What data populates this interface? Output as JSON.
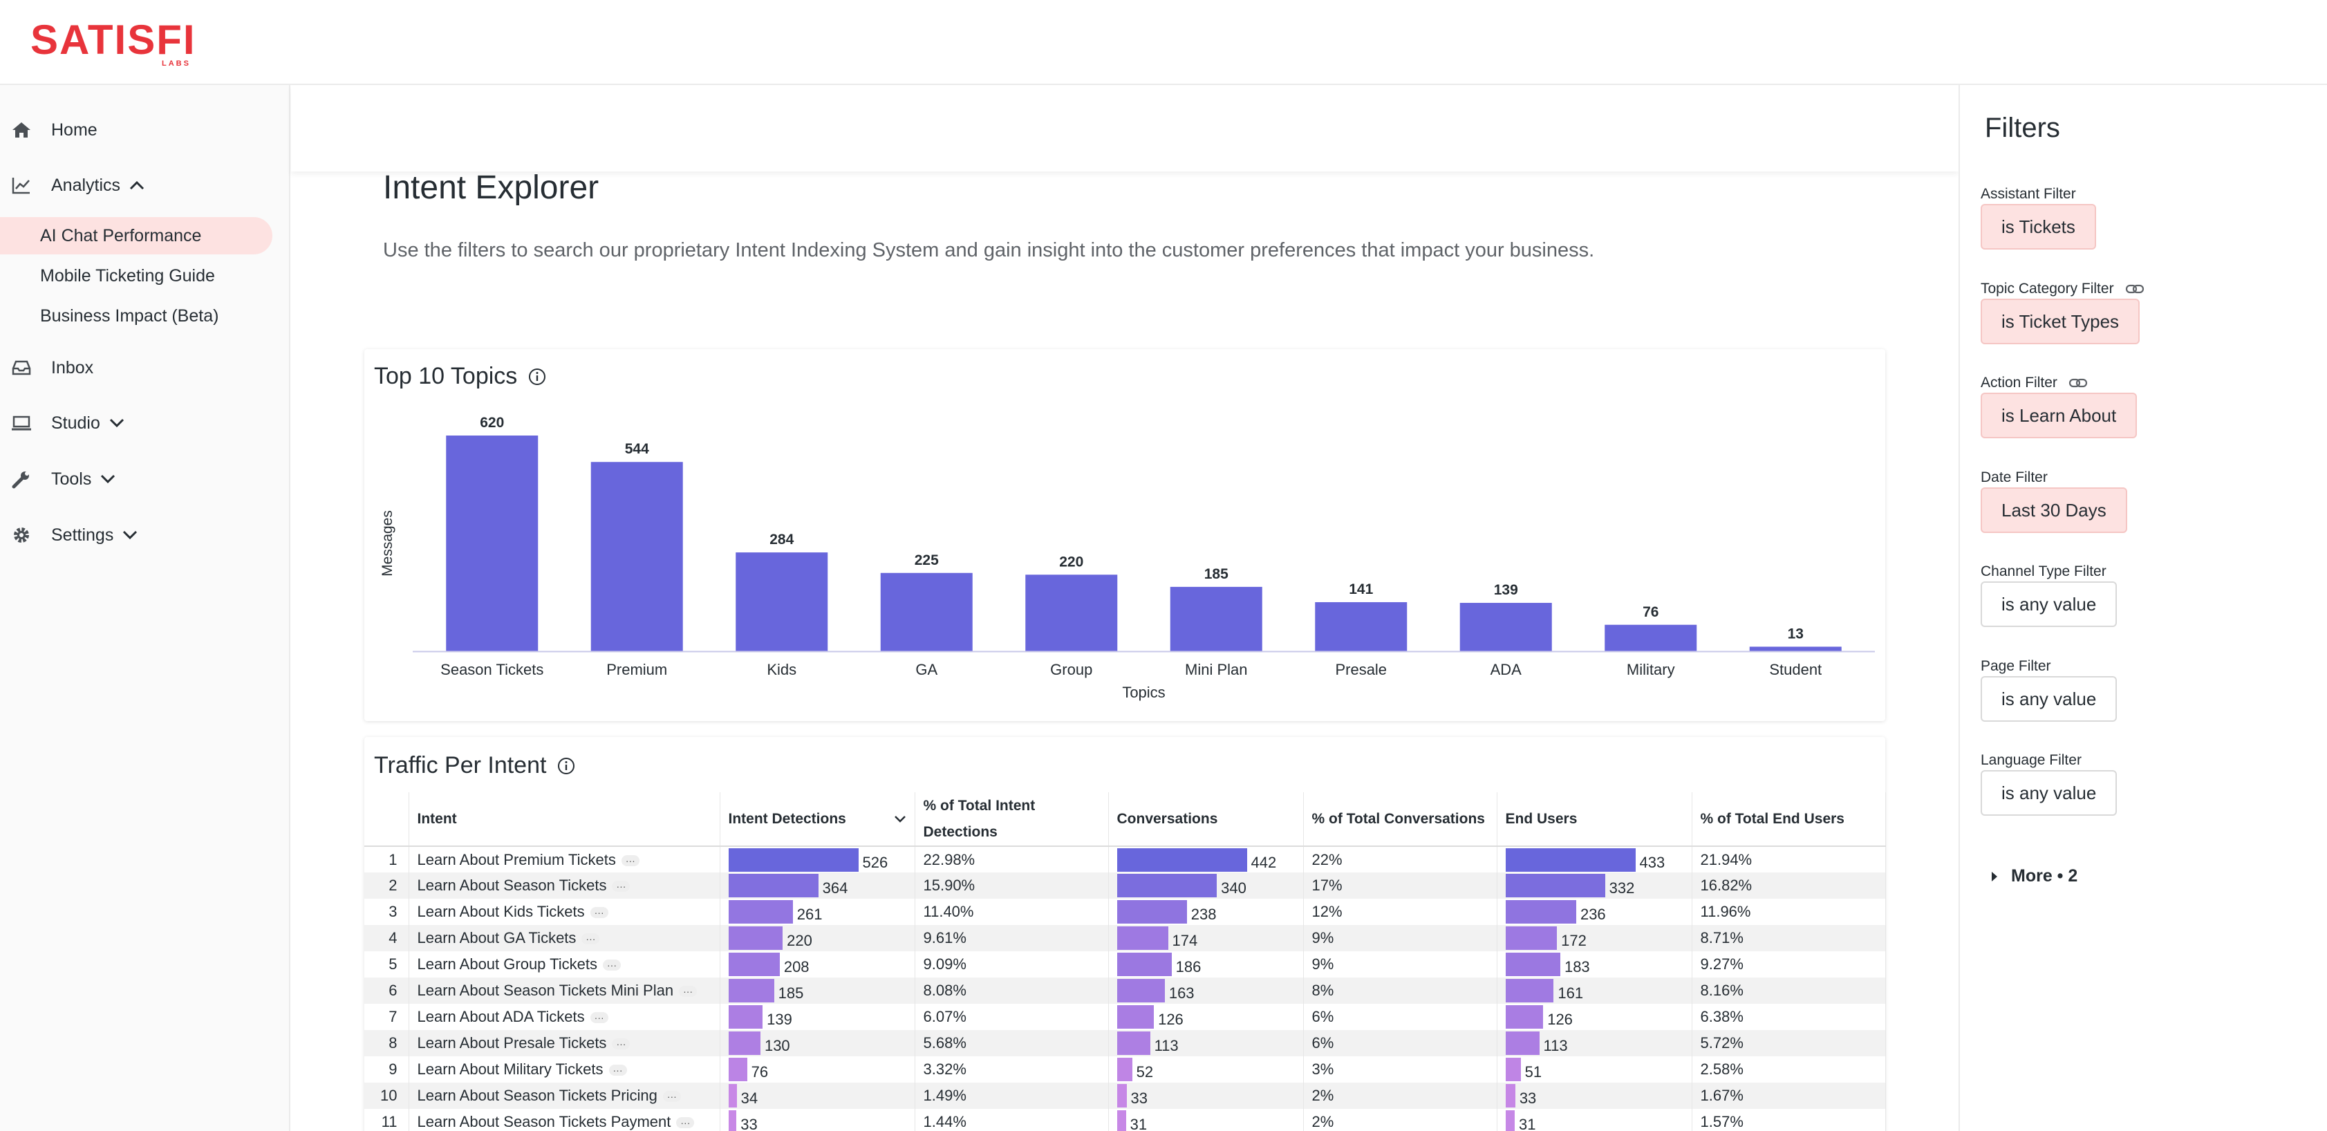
{
  "brand": {
    "name": "SATISFI",
    "sub": "LABS",
    "color": "#e8343b"
  },
  "sidebar": {
    "items": [
      {
        "label": "Home",
        "icon": "home-icon"
      },
      {
        "label": "Analytics",
        "icon": "chart-line-icon",
        "expanded": true
      },
      {
        "label": "Inbox",
        "icon": "inbox-icon"
      },
      {
        "label": "Studio",
        "icon": "laptop-icon"
      },
      {
        "label": "Tools",
        "icon": "wrench-icon"
      },
      {
        "label": "Settings",
        "icon": "gear-icon"
      }
    ],
    "analytics_children": [
      {
        "label": "AI Chat Performance",
        "active": true
      },
      {
        "label": "Mobile Ticketing Guide"
      },
      {
        "label": "Business Impact (Beta)"
      }
    ]
  },
  "page": {
    "title": "Intent Explorer",
    "description": "Use the filters to search our proprietary Intent Indexing System and gain insight into the customer preferences that impact your business."
  },
  "top_topics": {
    "title": "Top 10 Topics",
    "chart_data": {
      "type": "bar",
      "categories": [
        "Season Tickets",
        "Premium",
        "Kids",
        "GA",
        "Group",
        "Mini Plan",
        "Presale",
        "ADA",
        "Military",
        "Student"
      ],
      "values": [
        620,
        544,
        284,
        225,
        220,
        185,
        141,
        139,
        76,
        13
      ],
      "xlabel": "Topics",
      "ylabel": "Messages",
      "ylim": [
        0,
        620
      ],
      "bar_color": "#6866dc",
      "data_labels": true,
      "grid": false
    }
  },
  "traffic": {
    "title": "Traffic Per Intent",
    "columns": [
      "Intent",
      "Intent Detections",
      "% of Total Intent Detections",
      "Conversations",
      "% of Total Conversations",
      "End Users",
      "% of Total End Users"
    ],
    "rows": [
      {
        "n": "1",
        "intent": "Learn About Premium Tickets",
        "det": 526,
        "det_pct": "22.98%",
        "conv": 442,
        "conv_pct": "22%",
        "users": 433,
        "users_pct": "21.94%"
      },
      {
        "n": "2",
        "intent": "Learn About Season Tickets",
        "det": 364,
        "det_pct": "15.90%",
        "conv": 340,
        "conv_pct": "17%",
        "users": 332,
        "users_pct": "16.82%"
      },
      {
        "n": "3",
        "intent": "Learn About Kids Tickets",
        "det": 261,
        "det_pct": "11.40%",
        "conv": 238,
        "conv_pct": "12%",
        "users": 236,
        "users_pct": "11.96%"
      },
      {
        "n": "4",
        "intent": "Learn About GA Tickets",
        "det": 220,
        "det_pct": "9.61%",
        "conv": 174,
        "conv_pct": "9%",
        "users": 172,
        "users_pct": "8.71%"
      },
      {
        "n": "5",
        "intent": "Learn About Group Tickets",
        "det": 208,
        "det_pct": "9.09%",
        "conv": 186,
        "conv_pct": "9%",
        "users": 183,
        "users_pct": "9.27%"
      },
      {
        "n": "6",
        "intent": "Learn About Season Tickets Mini Plan",
        "det": 185,
        "det_pct": "8.08%",
        "conv": 163,
        "conv_pct": "8%",
        "users": 161,
        "users_pct": "8.16%"
      },
      {
        "n": "7",
        "intent": "Learn About ADA Tickets",
        "det": 139,
        "det_pct": "6.07%",
        "conv": 126,
        "conv_pct": "6%",
        "users": 126,
        "users_pct": "6.38%"
      },
      {
        "n": "8",
        "intent": "Learn About Presale Tickets",
        "det": 130,
        "det_pct": "5.68%",
        "conv": 113,
        "conv_pct": "6%",
        "users": 113,
        "users_pct": "5.72%"
      },
      {
        "n": "9",
        "intent": "Learn About Military Tickets",
        "det": 76,
        "det_pct": "3.32%",
        "conv": 52,
        "conv_pct": "3%",
        "users": 51,
        "users_pct": "2.58%"
      },
      {
        "n": "10",
        "intent": "Learn About Season Tickets Pricing",
        "det": 34,
        "det_pct": "1.49%",
        "conv": 33,
        "conv_pct": "2%",
        "users": 33,
        "users_pct": "1.67%"
      },
      {
        "n": "11",
        "intent": "Learn About Season Tickets Payment",
        "det": 33,
        "det_pct": "1.44%",
        "conv": 31,
        "conv_pct": "2%",
        "users": 31,
        "users_pct": "1.57%"
      }
    ],
    "bar_colors": {
      "high": "#6866dc",
      "low": "#d88ee8"
    }
  },
  "filters": {
    "title": "Filters",
    "items": [
      {
        "label": "Assistant Filter",
        "value": "is Tickets",
        "set": true,
        "link": false
      },
      {
        "label": "Topic Category Filter",
        "value": "is Ticket Types",
        "set": true,
        "link": true
      },
      {
        "label": "Action Filter",
        "value": "is Learn About",
        "set": true,
        "link": true
      },
      {
        "label": "Date Filter",
        "value": "Last 30 Days",
        "set": true,
        "link": false
      },
      {
        "label": "Channel Type Filter",
        "value": "is any value",
        "set": false,
        "link": false
      },
      {
        "label": "Page Filter",
        "value": "is any value",
        "set": false,
        "link": false
      },
      {
        "label": "Language Filter",
        "value": "is any value",
        "set": false,
        "link": false
      }
    ],
    "more_label": "More • 2"
  }
}
